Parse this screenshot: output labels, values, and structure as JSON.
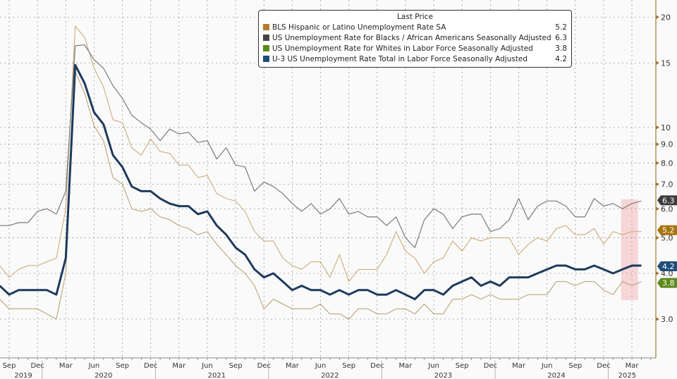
{
  "chart_data": {
    "type": "line",
    "title": "",
    "xlabel": "",
    "ylabel": "",
    "y_scale": "log",
    "ylim": [
      2.8,
      21
    ],
    "y_ticks": [
      "3.0",
      "4.0",
      "5.0",
      "6.0",
      "7.0",
      "8.0",
      "9.0",
      "10",
      "15",
      "20"
    ],
    "y_tick_values": [
      3,
      4,
      5,
      6,
      7,
      8,
      9,
      10,
      15,
      20
    ],
    "y_axis_side": "right",
    "grid": true,
    "legend_title": "Last Price",
    "legend_position": "top-center",
    "x_start": "2019-08",
    "x_end": "2025-04",
    "x_month_ticks": [
      "Sep",
      "Dec",
      "Mar",
      "Jun",
      "Sep",
      "Dec",
      "Mar",
      "Jun",
      "Sep",
      "Dec",
      "Mar",
      "Jun",
      "Sep",
      "Dec",
      "Mar",
      "Jun",
      "Sep",
      "Dec",
      "Mar",
      "Jun",
      "Sep",
      "Dec",
      "Mar"
    ],
    "x_year_labels": [
      "2019",
      "2020",
      "2021",
      "2022",
      "2023",
      "2024",
      "2025"
    ],
    "highlight_region": [
      "2025-02",
      "2025-04"
    ],
    "series": [
      {
        "name": "BLS Hispanic or Latino Unemployment Rate SA",
        "last": "5.2",
        "color": "#b07d2a",
        "line_color": "#c9a46a",
        "label_color": "#a8740f",
        "values": [
          4.2,
          3.9,
          4.1,
          4.2,
          4.2,
          4.3,
          4.4,
          6.0,
          18.9,
          17.6,
          14.5,
          12.9,
          10.5,
          10.3,
          8.8,
          8.4,
          9.3,
          8.6,
          8.5,
          7.9,
          7.9,
          7.3,
          7.4,
          6.6,
          6.4,
          6.3,
          5.9,
          5.2,
          4.9,
          4.9,
          4.4,
          4.2,
          4.1,
          4.3,
          4.3,
          3.9,
          4.5,
          3.8,
          4.1,
          4.1,
          4.1,
          4.5,
          5.2,
          4.6,
          4.4,
          4.0,
          4.3,
          4.4,
          4.9,
          4.6,
          5.0,
          4.9,
          5.0,
          5.0,
          5.0,
          4.5,
          4.8,
          5.0,
          4.9,
          5.3,
          5.4,
          5.1,
          5.1,
          5.3,
          4.8,
          5.2,
          5.1,
          5.2,
          5.2
        ]
      },
      {
        "name": "US Unemployment Rate for Blacks / African Americans Seasonally Adjusted",
        "last": "6.3",
        "color": "#444444",
        "line_color": "#7a7a7a",
        "label_color": "#3c3c3c",
        "values": [
          5.4,
          5.4,
          5.5,
          5.5,
          5.9,
          6.0,
          5.8,
          6.7,
          16.7,
          16.8,
          15.3,
          14.5,
          13.0,
          12.0,
          10.8,
          10.3,
          9.9,
          9.2,
          9.9,
          9.6,
          9.7,
          9.1,
          9.2,
          8.2,
          8.8,
          7.9,
          7.8,
          6.7,
          7.1,
          6.9,
          6.6,
          6.2,
          5.9,
          6.2,
          5.8,
          6.0,
          6.4,
          5.8,
          5.9,
          5.7,
          5.7,
          5.4,
          5.7,
          5.0,
          4.7,
          5.6,
          6.0,
          5.8,
          5.3,
          5.7,
          5.8,
          5.8,
          5.2,
          5.3,
          5.6,
          6.4,
          5.6,
          6.1,
          6.3,
          6.3,
          6.1,
          5.7,
          5.7,
          6.4,
          6.1,
          6.2,
          6.0,
          6.2,
          6.3
        ]
      },
      {
        "name": "US Unemployment Rate for Whites in Labor Force Seasonally Adjusted",
        "last": "3.8",
        "color": "#5a8a1a",
        "line_color": "#b89a6a",
        "label_color": "#5c8a1c",
        "values": [
          3.4,
          3.2,
          3.2,
          3.2,
          3.2,
          3.1,
          3.0,
          4.0,
          14.2,
          12.4,
          10.1,
          9.2,
          7.3,
          7.0,
          6.0,
          5.9,
          6.0,
          5.7,
          5.6,
          5.4,
          5.3,
          5.1,
          5.2,
          4.8,
          4.5,
          4.2,
          4.0,
          3.7,
          3.2,
          3.4,
          3.3,
          3.2,
          3.2,
          3.2,
          3.3,
          3.1,
          3.1,
          3.0,
          3.2,
          3.2,
          3.1,
          3.1,
          3.2,
          3.2,
          3.1,
          3.3,
          3.1,
          3.1,
          3.4,
          3.4,
          3.5,
          3.4,
          3.5,
          3.4,
          3.4,
          3.4,
          3.5,
          3.5,
          3.5,
          3.8,
          3.8,
          3.7,
          3.8,
          3.8,
          3.6,
          3.5,
          3.8,
          3.7,
          3.8
        ]
      },
      {
        "name": "U-3 US Unemployment Rate Total in Labor Force Seasonally Adjusted",
        "last": "4.2",
        "color": "#1f4e79",
        "line_color": "#1d3a5c",
        "label_color": "#1f4e79",
        "values": [
          3.7,
          3.5,
          3.6,
          3.6,
          3.6,
          3.6,
          3.5,
          4.4,
          14.8,
          13.2,
          11.0,
          10.2,
          8.4,
          7.8,
          6.9,
          6.7,
          6.7,
          6.4,
          6.2,
          6.1,
          6.1,
          5.8,
          5.9,
          5.4,
          5.1,
          4.7,
          4.5,
          4.1,
          3.9,
          4.0,
          3.8,
          3.6,
          3.7,
          3.6,
          3.6,
          3.5,
          3.6,
          3.5,
          3.6,
          3.6,
          3.5,
          3.5,
          3.6,
          3.5,
          3.4,
          3.6,
          3.6,
          3.5,
          3.7,
          3.8,
          3.9,
          3.7,
          3.8,
          3.7,
          3.9,
          3.9,
          3.9,
          4.0,
          4.1,
          4.2,
          4.2,
          4.1,
          4.1,
          4.2,
          4.1,
          4.0,
          4.1,
          4.2,
          4.2
        ]
      }
    ]
  }
}
